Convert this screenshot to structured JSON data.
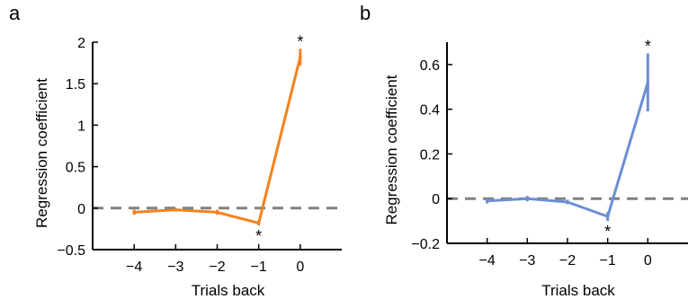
{
  "chart_data": [
    {
      "panel_label": "a",
      "type": "line",
      "xlabel": "Trials back",
      "ylabel": "Regression coefficient",
      "x": [
        -4,
        -3,
        -2,
        -1,
        0
      ],
      "xticks": [
        "−4",
        "−3",
        "−2",
        "−1",
        "0"
      ],
      "xlim": [
        -5,
        1
      ],
      "ylim": [
        -0.5,
        2
      ],
      "yticks": [
        -0.5,
        0,
        0.5,
        1,
        1.5,
        2
      ],
      "ytick_labels": [
        "−0.5",
        "0",
        "0.5",
        "1",
        "1.5",
        "2"
      ],
      "reference_line": {
        "y": 0,
        "style": "dashed",
        "color": "#808080"
      },
      "series": [
        {
          "color": "#F5821F",
          "values": [
            -0.05,
            -0.02,
            -0.05,
            -0.18,
            1.82
          ],
          "error": [
            0.03,
            0.02,
            0.03,
            0.03,
            0.1
          ]
        }
      ],
      "significance": [
        {
          "x": -1,
          "label": "*",
          "position": "below"
        },
        {
          "x": 0,
          "label": "*",
          "position": "above"
        }
      ]
    },
    {
      "panel_label": "b",
      "type": "line",
      "xlabel": "Trials back",
      "ylabel": "Regression coefficient",
      "x": [
        -4,
        -3,
        -2,
        -1,
        0
      ],
      "xticks": [
        "−4",
        "−3",
        "−2",
        "−1",
        "0"
      ],
      "xlim": [
        -5,
        1
      ],
      "ylim": [
        -0.2,
        0.7
      ],
      "yticks": [
        -0.2,
        0,
        0.2,
        0.4,
        0.6
      ],
      "ytick_labels": [
        "−0.2",
        "0",
        "0.2",
        "0.4",
        "0.6"
      ],
      "reference_line": {
        "y": 0,
        "style": "dashed",
        "color": "#808080"
      },
      "series": [
        {
          "color": "#6B8FD2",
          "values": [
            -0.01,
            0.0,
            -0.015,
            -0.08,
            0.52
          ],
          "error": [
            0.012,
            0.012,
            0.01,
            0.02,
            0.13
          ]
        }
      ],
      "significance": [
        {
          "x": -1,
          "label": "*",
          "position": "below"
        },
        {
          "x": 0,
          "label": "*",
          "position": "above"
        }
      ]
    }
  ]
}
